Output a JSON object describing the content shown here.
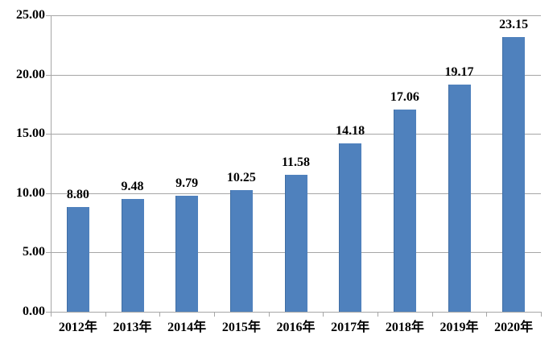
{
  "chart_data": {
    "type": "bar",
    "title": "",
    "categories": [
      "2012年",
      "2013年",
      "2014年",
      "2015年",
      "2016年",
      "2017年",
      "2018年",
      "2019年",
      "2020年"
    ],
    "values": [
      8.8,
      9.48,
      9.79,
      10.25,
      11.58,
      14.18,
      17.06,
      19.17,
      23.15
    ],
    "value_labels": [
      "8.80",
      "9.48",
      "9.79",
      "10.25",
      "11.58",
      "14.18",
      "17.06",
      "19.17",
      "23.15"
    ],
    "xlabel": "",
    "ylabel": "",
    "y_tick_labels": [
      "0.00",
      "5.00",
      "10.00",
      "15.00",
      "20.00",
      "25.00"
    ],
    "y_tick_values": [
      0,
      5,
      10,
      15,
      20,
      25
    ],
    "ylim": [
      0,
      25
    ],
    "grid": true,
    "legend_position": "none",
    "colors": {
      "bar_fill": "#4f81bd",
      "bar_border": "#3f6da3",
      "gridline": "#a6a6a6",
      "axis": "#a6a6a6",
      "text": "#000000",
      "background": "#ffffff"
    }
  }
}
